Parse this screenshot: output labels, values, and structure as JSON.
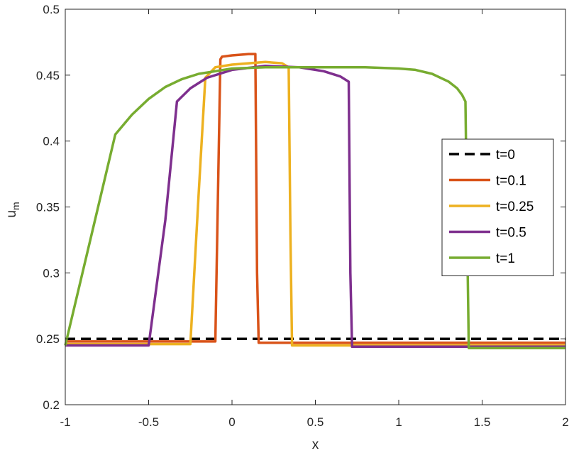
{
  "chart_data": {
    "type": "line",
    "xlabel": "x",
    "ylabel": {
      "main": "u",
      "sub": "m"
    },
    "xlim": [
      -1,
      2
    ],
    "ylim": [
      0.2,
      0.5
    ],
    "xticks": [
      "-1",
      "-0.5",
      "0",
      "0.5",
      "1",
      "1.5",
      "2"
    ],
    "yticks": [
      "0.2",
      "0.25",
      "0.3",
      "0.35",
      "0.4",
      "0.45",
      "0.5"
    ],
    "grid": false,
    "box": true,
    "legend_position": "right",
    "series": [
      {
        "name": "t=0",
        "color": "#000000",
        "dashed": true,
        "x": [
          -1,
          2
        ],
        "y": [
          0.25,
          0.25
        ]
      },
      {
        "name": "t=0.1",
        "color": "#D95319",
        "dashed": false,
        "x": [
          -1,
          -0.1,
          -0.07,
          -0.06,
          0.0,
          0.1,
          0.14,
          0.15,
          0.16,
          0.5,
          1.0,
          1.5,
          2.0
        ],
        "y": [
          0.248,
          0.248,
          0.462,
          0.464,
          0.465,
          0.466,
          0.466,
          0.3,
          0.247,
          0.247,
          0.247,
          0.247,
          0.247
        ]
      },
      {
        "name": "t=0.25",
        "color": "#EDB120",
        "dashed": false,
        "x": [
          -1,
          -0.25,
          -0.2,
          -0.16,
          -0.1,
          0.0,
          0.1,
          0.2,
          0.3,
          0.34,
          0.35,
          0.36,
          0.7,
          1.0,
          1.5,
          2.0
        ],
        "y": [
          0.246,
          0.246,
          0.36,
          0.448,
          0.456,
          0.458,
          0.459,
          0.46,
          0.459,
          0.456,
          0.33,
          0.245,
          0.245,
          0.245,
          0.245,
          0.245
        ]
      },
      {
        "name": "t=0.5",
        "color": "#7E2F8E",
        "dashed": false,
        "x": [
          -1,
          -0.5,
          -0.4,
          -0.33,
          -0.25,
          -0.15,
          0.0,
          0.2,
          0.4,
          0.55,
          0.65,
          0.7,
          0.71,
          0.72,
          1.0,
          1.5,
          2.0
        ],
        "y": [
          0.245,
          0.245,
          0.34,
          0.43,
          0.44,
          0.448,
          0.454,
          0.457,
          0.456,
          0.453,
          0.449,
          0.445,
          0.3,
          0.244,
          0.244,
          0.244,
          0.244
        ]
      },
      {
        "name": "t=1",
        "color": "#77AC30",
        "dashed": false,
        "x": [
          -1,
          -0.7,
          -0.6,
          -0.5,
          -0.4,
          -0.3,
          -0.2,
          -0.1,
          0.0,
          0.2,
          0.5,
          0.8,
          1.0,
          1.1,
          1.2,
          1.3,
          1.35,
          1.38,
          1.4,
          1.41,
          1.42,
          1.5,
          2.0
        ],
        "y": [
          0.245,
          0.405,
          0.42,
          0.432,
          0.441,
          0.447,
          0.451,
          0.453,
          0.455,
          0.456,
          0.456,
          0.456,
          0.455,
          0.454,
          0.451,
          0.445,
          0.44,
          0.435,
          0.43,
          0.33,
          0.243,
          0.243,
          0.243
        ]
      }
    ]
  }
}
